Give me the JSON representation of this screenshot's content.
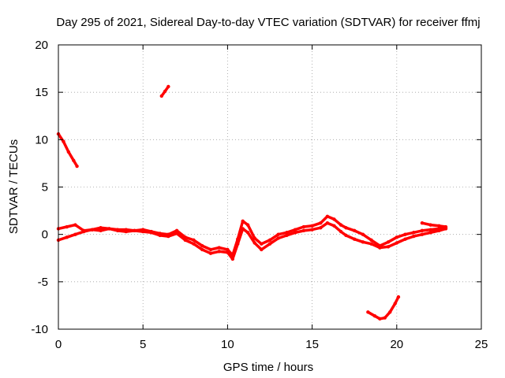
{
  "chart_data": {
    "type": "scatter",
    "title": "Day 295 of 2021, Sidereal Day-to-day VTEC variation (SDTVAR) for receiver ffmj",
    "xlabel": "GPS time / hours",
    "ylabel": "SDTVAR / TECUs",
    "xlim": [
      0,
      25
    ],
    "ylim": [
      -10,
      20
    ],
    "x_ticks": [
      0,
      5,
      10,
      15,
      20,
      25
    ],
    "y_ticks": [
      -10,
      -5,
      0,
      5,
      10,
      15,
      20
    ],
    "x_tick_labels": [
      "0",
      "5",
      "10",
      "15",
      "20",
      "25"
    ],
    "y_tick_labels": [
      "-10",
      "-5",
      "0",
      "5",
      "10",
      "15",
      "20"
    ],
    "grid": true,
    "series_color": "#ff0000",
    "series": [
      {
        "name": "main-band-a",
        "x": [
          0.0,
          0.5,
          1.0,
          1.5,
          2.0,
          2.5,
          3.0,
          3.5,
          4.0,
          4.5,
          5.0,
          5.5,
          6.0,
          6.5,
          7.0,
          7.5,
          8.0,
          8.5,
          9.0,
          9.5,
          10.0,
          10.3,
          10.6,
          10.9,
          11.2,
          11.6,
          12.0,
          12.5,
          13.0,
          13.5,
          14.0,
          14.5,
          15.0,
          15.5,
          15.9,
          16.3,
          16.7,
          17.0,
          17.5,
          18.0,
          18.5,
          19.0,
          19.5,
          20.0,
          20.5,
          21.0,
          21.5,
          22.0,
          22.5,
          22.9
        ],
        "y": [
          0.6,
          0.8,
          1.0,
          0.4,
          0.5,
          0.7,
          0.6,
          0.5,
          0.5,
          0.4,
          0.5,
          0.3,
          0.1,
          0.0,
          0.4,
          -0.3,
          -0.6,
          -1.2,
          -1.6,
          -1.4,
          -1.6,
          -2.2,
          -0.5,
          1.4,
          1.0,
          -0.4,
          -1.0,
          -0.6,
          0.0,
          0.2,
          0.5,
          0.8,
          0.9,
          1.2,
          1.9,
          1.6,
          1.0,
          0.7,
          0.4,
          0.0,
          -0.6,
          -1.2,
          -0.8,
          -0.3,
          0.0,
          0.2,
          0.4,
          0.5,
          0.6,
          0.7
        ]
      },
      {
        "name": "main-band-b",
        "x": [
          0.0,
          0.5,
          1.0,
          1.5,
          2.0,
          2.5,
          3.0,
          3.5,
          4.0,
          4.5,
          5.0,
          5.5,
          6.0,
          6.5,
          7.0,
          7.5,
          8.0,
          8.5,
          9.0,
          9.5,
          10.0,
          10.3,
          10.6,
          10.9,
          11.2,
          11.6,
          12.0,
          12.5,
          13.0,
          13.5,
          14.0,
          14.5,
          15.0,
          15.5,
          15.9,
          16.3,
          16.7,
          17.0,
          17.5,
          18.0,
          18.5,
          19.0,
          19.5,
          20.0,
          20.5,
          21.0,
          21.5,
          22.0,
          22.5,
          22.9
        ],
        "y": [
          -0.6,
          -0.3,
          0.0,
          0.3,
          0.5,
          0.4,
          0.6,
          0.4,
          0.3,
          0.4,
          0.3,
          0.2,
          -0.1,
          -0.2,
          0.1,
          -0.6,
          -1.0,
          -1.6,
          -2.0,
          -1.8,
          -1.9,
          -2.6,
          -1.0,
          0.6,
          0.2,
          -0.9,
          -1.6,
          -1.0,
          -0.4,
          -0.1,
          0.2,
          0.4,
          0.5,
          0.7,
          1.2,
          0.9,
          0.3,
          -0.1,
          -0.5,
          -0.8,
          -1.0,
          -1.4,
          -1.3,
          -0.9,
          -0.5,
          -0.2,
          0.0,
          0.2,
          0.4,
          0.6
        ]
      },
      {
        "name": "upper-segment",
        "x": [
          0.0,
          0.3,
          0.6,
          0.9,
          1.1
        ],
        "y": [
          10.6,
          9.8,
          8.7,
          7.8,
          7.2
        ]
      },
      {
        "name": "top-segment",
        "x": [
          6.1,
          6.3,
          6.5
        ],
        "y": [
          14.6,
          15.1,
          15.6
        ]
      },
      {
        "name": "late-segment",
        "x": [
          21.5,
          22.0,
          22.5,
          22.9
        ],
        "y": [
          1.2,
          1.0,
          0.9,
          0.8
        ]
      },
      {
        "name": "lower-segment",
        "x": [
          18.3,
          18.7,
          19.0,
          19.3,
          19.6,
          19.9,
          20.1
        ],
        "y": [
          -8.2,
          -8.6,
          -8.9,
          -8.8,
          -8.2,
          -7.3,
          -6.6
        ]
      }
    ]
  }
}
